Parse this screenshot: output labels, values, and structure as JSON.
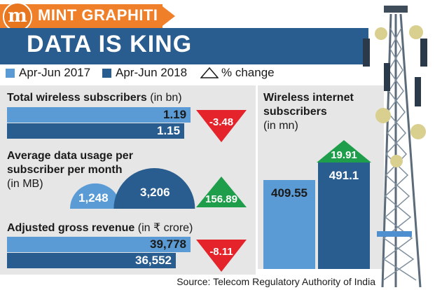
{
  "header": {
    "logo_letter": "m",
    "brand": "MINT GRAPHITI",
    "title": "DATA IS KING"
  },
  "legend": [
    {
      "label": "Apr-Jun 2017",
      "color": "#5b9bd5"
    },
    {
      "label": "Apr-Jun 2018",
      "color": "#2a5d8f"
    },
    {
      "label": "% change"
    }
  ],
  "source": "Source: Telecom Regulatory Authority of India",
  "colors": {
    "q2017": "#5b9bd5",
    "q2018": "#2a5d8f",
    "increase": "#1e9e4a",
    "decrease": "#e4232b",
    "accent": "#f07f2a"
  },
  "chart_data": [
    {
      "type": "bar",
      "title": "Total wireless subscribers",
      "unit": "(in bn)",
      "categories": [
        "Apr-Jun 2017",
        "Apr-Jun 2018"
      ],
      "values": [
        1.19,
        1.15
      ],
      "labels": [
        "1.19",
        "1.15"
      ],
      "pct_change": -3.48,
      "pct_change_label": "-3.48"
    },
    {
      "type": "bar",
      "title": "Average data usage per subscriber per month",
      "unit": "(in MB)",
      "categories": [
        "Apr-Jun 2017",
        "Apr-Jun 2018"
      ],
      "values": [
        1248,
        3206
      ],
      "labels": [
        "1,248",
        "3,206"
      ],
      "pct_change": 156.89,
      "pct_change_label": "156.89"
    },
    {
      "type": "bar",
      "title": "Adjusted gross revenue",
      "unit": "(in ₹ crore)",
      "categories": [
        "Apr-Jun 2017",
        "Apr-Jun 2018"
      ],
      "values": [
        39778,
        36552
      ],
      "labels": [
        "39,778",
        "36,552"
      ],
      "pct_change": -8.11,
      "pct_change_label": "-8.11"
    },
    {
      "type": "bar",
      "title": "Wireless internet subscribers",
      "unit": "(in mn)",
      "categories": [
        "Apr-Jun 2017",
        "Apr-Jun 2018"
      ],
      "values": [
        409.55,
        491.1
      ],
      "labels": [
        "409.55",
        "491.1"
      ],
      "pct_change": 19.91,
      "pct_change_label": "19.91"
    }
  ]
}
